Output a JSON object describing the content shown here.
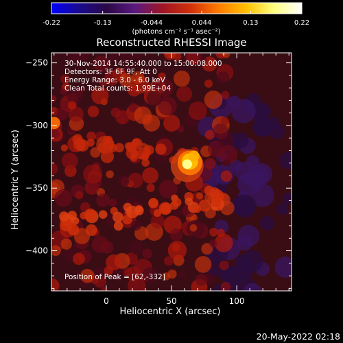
{
  "colorbar": {
    "ticks": [
      "-0.22",
      "-0.13",
      "-0.044",
      "0.044",
      "0.13",
      "0.22"
    ],
    "tick_values": [
      -0.22,
      -0.13,
      -0.044,
      0.044,
      0.13,
      0.22
    ],
    "range": [
      -0.22,
      0.22
    ],
    "units": "(photons cm⁻² s⁻¹ asec⁻²)",
    "gradient": [
      "#0000ff",
      "#1a0a8c",
      "#2b0848",
      "#5a1a80",
      "#a01525",
      "#d0300a",
      "#ff7a00",
      "#ffc000",
      "#ffff80",
      "#ffffff"
    ]
  },
  "chart_data": {
    "type": "heatmap",
    "title": "Reconstructed RHESSI Image",
    "xlabel": "Heliocentric X (arcsec)",
    "ylabel": "Heliocentric Y (arcsec)",
    "xlim": [
      -42,
      142
    ],
    "ylim": [
      -432,
      -242
    ],
    "x_ticks": [
      0,
      50,
      100
    ],
    "y_ticks": [
      -250,
      -300,
      -350,
      -400
    ],
    "peak": [
      62,
      -332
    ],
    "annotations": [
      "30-Nov-2014 14:55:40.000 to 15:00:08.000",
      "Detectors: 3F 6F 9F, Att 0",
      "Energy Range: 3.0 - 6.0 keV",
      "Clean     Total counts: 1.99E+04"
    ],
    "peak_label": "Position of Peak = [62,-332]"
  },
  "footer": {
    "date": "20-May-2022 02:18"
  },
  "colors": {
    "background": "#000000",
    "axis": "#ffffff"
  }
}
